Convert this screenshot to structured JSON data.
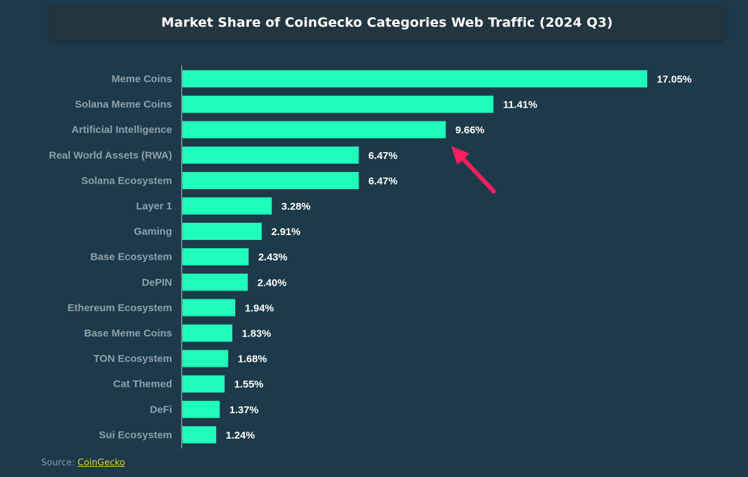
{
  "chart_data": {
    "type": "bar",
    "orientation": "horizontal",
    "title": "Market Share of CoinGecko Categories Web Traffic (2024 Q3)",
    "categories": [
      "Meme Coins",
      "Solana Meme Coins",
      "Artificial Intelligence",
      "Real World Assets (RWA)",
      "Solana Ecosystem",
      "Layer 1",
      "Gaming",
      "Base Ecosystem",
      "DePIN",
      "Ethereum Ecosystem",
      "Base Meme Coins",
      "TON Ecosystem",
      "Cat Themed",
      "DeFi",
      "Sui Ecosystem"
    ],
    "values": [
      17.05,
      11.41,
      9.66,
      6.47,
      6.47,
      3.28,
      2.91,
      2.43,
      2.4,
      1.94,
      1.83,
      1.68,
      1.55,
      1.37,
      1.24
    ],
    "value_labels": [
      "17.05%",
      "11.41%",
      "9.66%",
      "6.47%",
      "6.47%",
      "3.28%",
      "2.91%",
      "2.43%",
      "2.40%",
      "1.94%",
      "1.83%",
      "1.68%",
      "1.55%",
      "1.37%",
      "1.24%"
    ],
    "xlim": [
      0,
      17.05
    ],
    "unit": "%",
    "grid": false,
    "bar_color": "#1ffdbb",
    "annotation": {
      "type": "arrow",
      "points_to": "Artificial Intelligence",
      "color": "#ff1f5e"
    }
  },
  "source": {
    "prefix": "Source: ",
    "link_text": "CoinGecko"
  },
  "colors": {
    "background": "#1c3a49",
    "title_bar": "#233640",
    "label": "#8fa1aa",
    "link": "#e8cf3a"
  }
}
